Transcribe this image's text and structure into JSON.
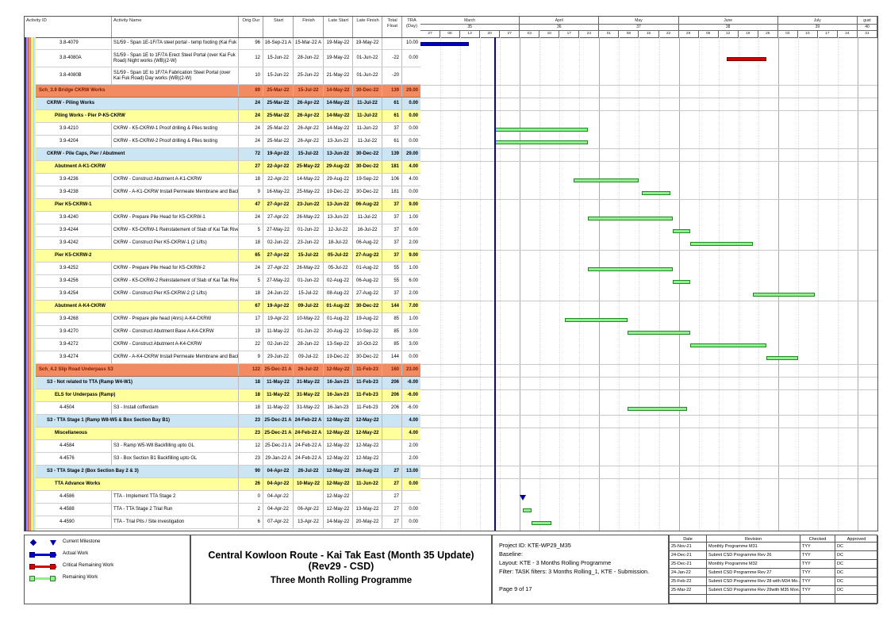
{
  "colors": {
    "section_bg": "#F28B62",
    "section_text": "#7B1A00",
    "group_bg": "#CBE5F5",
    "sub_bg": "#FFFF9C",
    "actual": "#0000CC",
    "critical": "#D40000",
    "remaining_fill": "#90EE90",
    "remaining_border": "#1F8A1F",
    "milestone": "#0000A0",
    "data_date": "#0000D0"
  },
  "table": {
    "columns": [
      "Activity ID",
      "Activity Name",
      "Orig Dur",
      "Start",
      "Finish",
      "Late Start",
      "Late Finish",
      "Total Float",
      "TRA (Day)"
    ],
    "rows": [
      {
        "type": "task",
        "id": "3.8-4079",
        "name": "S1/59 - Span 1E-1F/7A steel portal - temp footing (Kai Fuk Road) Night works",
        "dur": "96",
        "start": "16-Sep-21 A",
        "finish": "15-Mar-22 A",
        "lstart": "19-May-22",
        "lfinish": "19-May-22",
        "tfloat": "",
        "tra": "10.00",
        "bar": "actual"
      },
      {
        "type": "task",
        "tall": true,
        "id": "3.8-4080A",
        "name": "S1/59 - Span 1E to 1F/7A Erect Steel Portal (over Kai Fuk Road) Night works (WB)(2-W)",
        "dur": "12",
        "start": "15-Jun-22",
        "finish": "28-Jun-22",
        "lstart": "19-May-22",
        "lfinish": "01-Jun-22",
        "tfloat": "-22",
        "tra": "0.00",
        "bar": "critical"
      },
      {
        "type": "task",
        "tall": true,
        "id": "3.8-4080B",
        "name": "S1/59 - Span 1E to 1F/7A Fabrication Steel Portal (over Kai Fuk Road) Day works (WB)(2-W)",
        "dur": "10",
        "start": "15-Jun-22",
        "finish": "25-Jun-22",
        "lstart": "21-May-22",
        "lfinish": "01-Jun-22",
        "tfloat": "-20",
        "tra": ""
      },
      {
        "type": "l1",
        "name": "Sch_3.9 Bridge CKRW Works",
        "dur": "89",
        "start": "25-Mar-22",
        "finish": "15-Jul-22",
        "lstart": "14-May-22",
        "lfinish": "30-Dec-22",
        "tfloat": "139",
        "tra": "29.00"
      },
      {
        "type": "l2",
        "name": "CKRW - Piling Works",
        "dur": "24",
        "start": "25-Mar-22",
        "finish": "26-Apr-22",
        "lstart": "14-May-22",
        "lfinish": "11-Jul-22",
        "tfloat": "61",
        "tra": "0.00"
      },
      {
        "type": "l3",
        "name": "Piling Works - Pier P-K5-CKRW",
        "dur": "24",
        "start": "25-Mar-22",
        "finish": "26-Apr-22",
        "lstart": "14-May-22",
        "lfinish": "11-Jul-22",
        "tfloat": "61",
        "tra": "0.00"
      },
      {
        "type": "task",
        "id": "3.9-4210",
        "name": "CKRW - K5-CKRW-1 Proof drilling & Piles testing",
        "dur": "24",
        "start": "25-Mar-22",
        "finish": "26-Apr-22",
        "lstart": "14-May-22",
        "lfinish": "11-Jun-22",
        "tfloat": "37",
        "tra": "0.00",
        "bar": "remaining"
      },
      {
        "type": "task",
        "id": "3.9-4204",
        "name": "CKRW - K5-CKRW-2 Proof drilling & Piles testing",
        "dur": "24",
        "start": "25-Mar-22",
        "finish": "26-Apr-22",
        "lstart": "13-Jun-22",
        "lfinish": "11-Jul-22",
        "tfloat": "61",
        "tra": "0.00",
        "bar": "remaining"
      },
      {
        "type": "l2",
        "name": "CKRW - Pile Caps, Pier / Abutment",
        "dur": "72",
        "start": "19-Apr-22",
        "finish": "15-Jul-22",
        "lstart": "13-Jun-22",
        "lfinish": "30-Dec-22",
        "tfloat": "139",
        "tra": "29.00"
      },
      {
        "type": "l3",
        "name": "Abutment A-K1-CKRW",
        "dur": "27",
        "start": "22-Apr-22",
        "finish": "25-May-22",
        "lstart": "29-Aug-22",
        "lfinish": "30-Dec-22",
        "tfloat": "181",
        "tra": "4.00"
      },
      {
        "type": "task",
        "id": "3.9-4236",
        "name": "CKRW - Construct Abutment A-K1-CKRW",
        "dur": "18",
        "start": "22-Apr-22",
        "finish": "14-May-22",
        "lstart": "29-Aug-22",
        "lfinish": "19-Sep-22",
        "tfloat": "106",
        "tra": "4.00",
        "bar": "remaining"
      },
      {
        "type": "task",
        "id": "3.9-4238",
        "name": "CKRW - A-K1-CKRW Install Permeate Membrane and Backfill",
        "dur": "9",
        "start": "16-May-22",
        "finish": "25-May-22",
        "lstart": "19-Dec-22",
        "lfinish": "30-Dec-22",
        "tfloat": "181",
        "tra": "0.00",
        "bar": "remaining"
      },
      {
        "type": "l3",
        "name": "Pier K5-CKRW-1",
        "dur": "47",
        "start": "27-Apr-22",
        "finish": "23-Jun-22",
        "lstart": "13-Jun-22",
        "lfinish": "06-Aug-22",
        "tfloat": "37",
        "tra": "9.00"
      },
      {
        "type": "task",
        "id": "3.9-4240",
        "name": "CKRW - Prepare Pile Head for K5-CKRW-1",
        "dur": "24",
        "start": "27-Apr-22",
        "finish": "26-May-22",
        "lstart": "13-Jun-22",
        "lfinish": "11-Jul-22",
        "tfloat": "37",
        "tra": "1.00",
        "bar": "remaining"
      },
      {
        "type": "task",
        "id": "3.9-4244",
        "name": "CKRW - K5-CKRW-1 Reinstatement of Slab of Kai Tak River",
        "dur": "5",
        "start": "27-May-22",
        "finish": "01-Jun-22",
        "lstart": "12-Jul-22",
        "lfinish": "16-Jul-22",
        "tfloat": "37",
        "tra": "6.00",
        "bar": "remaining"
      },
      {
        "type": "task",
        "id": "3.9-4242",
        "name": "CKRW - Construct Pier K5-CKRW-1 (2 Lifts)",
        "dur": "18",
        "start": "02-Jun-22",
        "finish": "23-Jun-22",
        "lstart": "18-Jul-22",
        "lfinish": "06-Aug-22",
        "tfloat": "37",
        "tra": "2.00",
        "bar": "remaining"
      },
      {
        "type": "l3",
        "name": "Pier K5-CKRW-2",
        "dur": "65",
        "start": "27-Apr-22",
        "finish": "15-Jul-22",
        "lstart": "05-Jul-22",
        "lfinish": "27-Aug-22",
        "tfloat": "37",
        "tra": "9.00"
      },
      {
        "type": "task",
        "id": "3.9-4252",
        "name": "CKRW - Prepare Pile Head for K5-CKRW-2",
        "dur": "24",
        "start": "27-Apr-22",
        "finish": "26-May-22",
        "lstart": "05-Jul-22",
        "lfinish": "01-Aug-22",
        "tfloat": "55",
        "tra": "1.00",
        "bar": "remaining"
      },
      {
        "type": "task",
        "id": "3.9-4256",
        "name": "CKRW - K5-CKRW-2 Reinstatement of Slab of Kai Tak River",
        "dur": "5",
        "start": "27-May-22",
        "finish": "01-Jun-22",
        "lstart": "02-Aug-22",
        "lfinish": "06-Aug-22",
        "tfloat": "55",
        "tra": "6.00",
        "bar": "remaining"
      },
      {
        "type": "task",
        "id": "3.9-4254",
        "name": "CKRW - Construct Pier K5-CKRW-2 (2 Lifts)",
        "dur": "18",
        "start": "24-Jun-22",
        "finish": "15-Jul-22",
        "lstart": "08-Aug-22",
        "lfinish": "27-Aug-22",
        "tfloat": "37",
        "tra": "2.00",
        "bar": "remaining"
      },
      {
        "type": "l3",
        "name": "Abutment A-K4-CKRW",
        "dur": "67",
        "start": "19-Apr-22",
        "finish": "09-Jul-22",
        "lstart": "01-Aug-22",
        "lfinish": "30-Dec-22",
        "tfloat": "144",
        "tra": "7.00"
      },
      {
        "type": "task",
        "id": "3.9-4268",
        "name": "CKRW - Prepare pile head (4nrs) A-K4-CKRW",
        "dur": "17",
        "start": "19-Apr-22",
        "finish": "10-May-22",
        "lstart": "01-Aug-22",
        "lfinish": "19-Aug-22",
        "tfloat": "85",
        "tra": "1.00",
        "bar": "remaining"
      },
      {
        "type": "task",
        "id": "3.9-4270",
        "name": "CKRW - Construct Abutment Base A-K4-CKRW",
        "dur": "19",
        "start": "11-May-22",
        "finish": "01-Jun-22",
        "lstart": "20-Aug-22",
        "lfinish": "10-Sep-22",
        "tfloat": "85",
        "tra": "3.00",
        "bar": "remaining"
      },
      {
        "type": "task",
        "id": "3.9-4272",
        "name": "CKRW - Construct Abutment A-K4-CKRW",
        "dur": "22",
        "start": "02-Jun-22",
        "finish": "28-Jun-22",
        "lstart": "13-Sep-22",
        "lfinish": "10-Oct-22",
        "tfloat": "85",
        "tra": "3.00",
        "bar": "remaining"
      },
      {
        "type": "task",
        "id": "3.9-4274",
        "name": "CKRW - A-K4-CKRW Install Permeate Membrane and Backfill",
        "dur": "9",
        "start": "29-Jun-22",
        "finish": "09-Jul-22",
        "lstart": "19-Dec-22",
        "lfinish": "30-Dec-22",
        "tfloat": "144",
        "tra": "0.00",
        "bar": "remaining"
      },
      {
        "type": "l1",
        "name": "Sch_4.2 Slip Road Underpass S3",
        "dur": "122",
        "start": "25-Dec-21 A",
        "finish": "26-Jul-22",
        "lstart": "12-May-22",
        "lfinish": "11-Feb-23",
        "tfloat": "160",
        "tra": "23.00"
      },
      {
        "type": "l2",
        "name": "S3 - Not related to TTA (Ramp W4-W1)",
        "dur": "18",
        "start": "11-May-22",
        "finish": "31-May-22",
        "lstart": "16-Jan-23",
        "lfinish": "11-Feb-23",
        "tfloat": "206",
        "tra": "-6.00"
      },
      {
        "type": "l3",
        "name": "ELS for Underpass (Ramp)",
        "dur": "18",
        "start": "11-May-22",
        "finish": "31-May-22",
        "lstart": "16-Jan-23",
        "lfinish": "11-Feb-23",
        "tfloat": "206",
        "tra": "-6.00"
      },
      {
        "type": "task",
        "id": "4-4504",
        "name": "S3 - Install cofferdam",
        "dur": "18",
        "start": "11-May-22",
        "finish": "31-May-22",
        "lstart": "16-Jan-23",
        "lfinish": "11-Feb-23",
        "tfloat": "206",
        "tra": "-6.00",
        "bar": "remaining"
      },
      {
        "type": "l2",
        "name": "S3 - TTA Stage 1 (Ramp W8-W5 & Box Section Bay B1)",
        "dur": "23",
        "start": "25-Dec-21 A",
        "finish": "24-Feb-22 A",
        "lstart": "12-May-22",
        "lfinish": "12-May-22",
        "tfloat": "",
        "tra": "4.00"
      },
      {
        "type": "l3",
        "name": "Miscellaneous",
        "dur": "23",
        "start": "25-Dec-21 A",
        "finish": "24-Feb-22 A",
        "lstart": "12-May-22",
        "lfinish": "12-May-22",
        "tfloat": "",
        "tra": "4.00"
      },
      {
        "type": "task",
        "id": "4-4584",
        "name": "S3 - Ramp W5-W8 Backfilling upto GL",
        "dur": "12",
        "start": "25-Dec-21 A",
        "finish": "24-Feb-22 A",
        "lstart": "12-May-22",
        "lfinish": "12-May-22",
        "tfloat": "",
        "tra": "2.00"
      },
      {
        "type": "task",
        "id": "4-4576",
        "name": "S3 - Box Section B1 Backfilling upto GL",
        "dur": "23",
        "start": "29-Jan-22 A",
        "finish": "24-Feb-22 A",
        "lstart": "12-May-22",
        "lfinish": "12-May-22",
        "tfloat": "",
        "tra": "2.00"
      },
      {
        "type": "l2",
        "name": "S3 - TTA Stage 2 (Box Section Bay 2 & 3)",
        "dur": "90",
        "start": "04-Apr-22",
        "finish": "26-Jul-22",
        "lstart": "12-May-22",
        "lfinish": "26-Aug-22",
        "tfloat": "27",
        "tra": "13.00"
      },
      {
        "type": "l3",
        "name": "TTA Advance Works",
        "dur": "26",
        "start": "04-Apr-22",
        "finish": "10-May-22",
        "lstart": "12-May-22",
        "lfinish": "11-Jun-22",
        "tfloat": "27",
        "tra": "0.00"
      },
      {
        "type": "task",
        "id": "4-4586",
        "name": "TTA - Implement TTA Stage 2",
        "dur": "0",
        "start": "04-Apr-22",
        "finish": "",
        "lstart": "12-May-22",
        "lfinish": "",
        "tfloat": "27",
        "tra": "",
        "bar": "milestone"
      },
      {
        "type": "task",
        "id": "4-4588",
        "name": "TTA - TTA Stage 2 Trial Run",
        "dur": "2",
        "start": "04-Apr-22",
        "finish": "06-Apr-22",
        "lstart": "12-May-22",
        "lfinish": "13-May-22",
        "tfloat": "27",
        "tra": "0.00",
        "bar": "remaining"
      },
      {
        "type": "task",
        "id": "4-4590",
        "name": "TTA - Trial Pits / Site investigation",
        "dur": "6",
        "start": "07-Apr-22",
        "finish": "13-Apr-22",
        "lstart": "14-May-22",
        "lfinish": "20-May-22",
        "tfloat": "27",
        "tra": "0.00",
        "bar": "remaining"
      }
    ]
  },
  "timeline": {
    "origin": "27-Feb-22",
    "data_date": "25-Mar-22",
    "months": [
      {
        "label": "March",
        "num": "35",
        "weeks": 5
      },
      {
        "label": "April",
        "num": "36",
        "weeks": 4
      },
      {
        "label": "May",
        "num": "37",
        "weeks": 4
      },
      {
        "label": "June",
        "num": "38",
        "weeks": 5
      },
      {
        "label": "July",
        "num": "39",
        "weeks": 4
      },
      {
        "label": "gust",
        "num": "40",
        "weeks": 1
      }
    ],
    "weeks": [
      "27",
      "06",
      "13",
      "20",
      "27",
      "03",
      "10",
      "17",
      "24",
      "01",
      "08",
      "15",
      "22",
      "29",
      "05",
      "12",
      "19",
      "26",
      "03",
      "10",
      "17",
      "24",
      "31"
    ]
  },
  "legend": [
    {
      "kind": "milestone",
      "label": "Current Milestone"
    },
    {
      "kind": "actual",
      "label": "Actual Work"
    },
    {
      "kind": "critical",
      "label": "Critical Remaining Work"
    },
    {
      "kind": "remaining",
      "label": "Remaining Work"
    }
  ],
  "footer": {
    "title_line1": "Central Kowloon Route - Kai Tak East (Month 35 Update) (Rev29 - CSD)",
    "title_line2": "Three Month Rolling Programme",
    "info_lines": [
      "Project ID: KTE-WP29_M35",
      "Baseline:",
      "Layout: KTE - 3 Months Rolling Programme",
      "Filter: TASK filters: 3 Months Rolling_1, KTE - Submission."
    ],
    "page_label": "Page 9 of 17"
  },
  "revision_table": {
    "columns": [
      "Date",
      "Revision",
      "Checked",
      "Approved"
    ],
    "rows": [
      [
        "25-Nov-21",
        "Monthly Programme M31",
        "TYY",
        "DC"
      ],
      [
        "24-Dec-21",
        "Submit CSD Programme Rev 26",
        "TYY",
        "DC"
      ],
      [
        "25-Dec-21",
        "Monthly Programme M32",
        "TYY",
        "DC"
      ],
      [
        "24-Jan-22",
        "Submit CSD Programme Rev 27",
        "TYY",
        "DC"
      ],
      [
        "25-Feb-22",
        "Submit CSD Programme Rev 28 with M34 Mo...",
        "TYY",
        "DC"
      ],
      [
        "25-Mar-22",
        "Submit CSD Programme Rev 29with M35 Mon...",
        "TYY",
        "DC"
      ],
      [
        "",
        "",
        "",
        ""
      ]
    ]
  }
}
